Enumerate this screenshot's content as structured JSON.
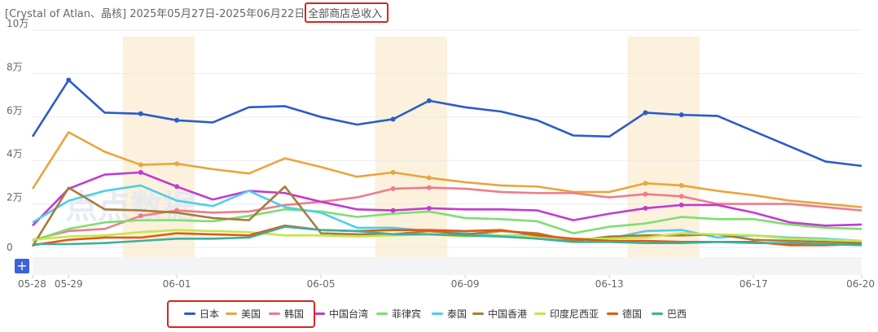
{
  "header": {
    "title_prefix": "[Crystal of Atlan、晶核] 2025年05月27日-2025年06月22日",
    "title_highlight": "全部商店总收入"
  },
  "controls": {
    "expand_label": "+"
  },
  "watermark": "点点数据",
  "chart_data": {
    "type": "line",
    "title": "全部商店总收入",
    "ylim": [
      0,
      100000
    ],
    "y_ticks": [
      {
        "value": 0,
        "label": "0"
      },
      {
        "value": 20000,
        "label": "2万"
      },
      {
        "value": 40000,
        "label": "4万"
      },
      {
        "value": 60000,
        "label": "6万"
      },
      {
        "value": 80000,
        "label": "8万"
      },
      {
        "value": 100000,
        "label": "10万"
      }
    ],
    "x": [
      "05-28",
      "05-29",
      "05-30",
      "05-31",
      "06-01",
      "06-02",
      "06-03",
      "06-04",
      "06-05",
      "06-06",
      "06-07",
      "06-08",
      "06-09",
      "06-10",
      "06-11",
      "06-12",
      "06-13",
      "06-14",
      "06-15",
      "06-16",
      "06-17",
      "06-18",
      "06-19",
      "06-20"
    ],
    "x_tick_labels": [
      "05-28",
      "05-29",
      "06-01",
      "06-05",
      "06-09",
      "06-13",
      "06-17",
      "06-20"
    ],
    "weekend_bands": [
      [
        "05-31",
        "06-01"
      ],
      [
        "06-07",
        "06-08"
      ],
      [
        "06-14",
        "06-15"
      ]
    ],
    "grid": true,
    "legend_position": "bottom",
    "series": [
      {
        "name": "日本",
        "color": "#2b5cc8",
        "values": [
          51000,
          77000,
          62000,
          61500,
          58500,
          57500,
          64500,
          65000,
          60000,
          56500,
          59000,
          67500,
          64500,
          62500,
          58500,
          51500,
          51000,
          62000,
          61000,
          60500,
          53500,
          46500,
          39500,
          37500
        ]
      },
      {
        "name": "美国",
        "color": "#e8a63c",
        "values": [
          27000,
          53000,
          44000,
          38000,
          38500,
          36000,
          34000,
          41000,
          37000,
          32500,
          34500,
          32000,
          30000,
          28500,
          28000,
          25500,
          25500,
          29500,
          28500,
          26000,
          24000,
          21500,
          20000,
          18500
        ]
      },
      {
        "name": "韩国",
        "color": "#ee7c8a",
        "values": [
          3500,
          7500,
          8500,
          14500,
          17000,
          16000,
          16500,
          19500,
          21000,
          23000,
          27000,
          27500,
          27000,
          25500,
          25000,
          25000,
          23000,
          24500,
          23500,
          20000,
          20000,
          20000,
          18500,
          17000
        ]
      },
      {
        "name": "中国台湾",
        "color": "#c23ad2",
        "values": [
          10000,
          27000,
          33500,
          34500,
          28000,
          22000,
          26000,
          25000,
          21000,
          17500,
          17000,
          18000,
          17500,
          17500,
          17000,
          12500,
          15500,
          18000,
          19500,
          19500,
          16000,
          11500,
          10000,
          10500
        ]
      },
      {
        "name": "菲律宾",
        "color": "#7ede6f",
        "values": [
          3000,
          8500,
          11500,
          12500,
          12500,
          12000,
          14500,
          17500,
          16500,
          14000,
          15500,
          16500,
          13500,
          13000,
          12000,
          6500,
          9500,
          11000,
          14000,
          13000,
          13000,
          10500,
          9000,
          8500
        ]
      },
      {
        "name": "泰国",
        "color": "#4dcfe8",
        "values": [
          11500,
          21500,
          26000,
          28500,
          21500,
          19000,
          26000,
          18500,
          16000,
          9000,
          9000,
          7500,
          6500,
          5500,
          5500,
          2500,
          4000,
          7500,
          8000,
          4500,
          5500,
          4500,
          4000,
          3000
        ]
      },
      {
        "name": "中国香港",
        "color": "#a87c3c",
        "values": [
          500,
          27500,
          17500,
          17000,
          16000,
          13500,
          12500,
          28000,
          6500,
          6000,
          6000,
          7500,
          6000,
          7500,
          6500,
          3000,
          5000,
          5500,
          5500,
          6000,
          3500,
          3000,
          2500,
          2000
        ]
      },
      {
        "name": "印度尼西亚",
        "color": "#c5e64a",
        "values": [
          3500,
          5000,
          5500,
          7000,
          8000,
          7500,
          7000,
          5500,
          5500,
          5000,
          5500,
          6000,
          5000,
          5500,
          5000,
          4000,
          4000,
          4500,
          6500,
          6000,
          5500,
          4000,
          3500,
          3000
        ]
      },
      {
        "name": "德国",
        "color": "#e05a12",
        "values": [
          1000,
          3500,
          4500,
          4500,
          6500,
          6000,
          5500,
          10000,
          8000,
          7500,
          8000,
          8000,
          7500,
          8000,
          5500,
          4000,
          3000,
          3000,
          2500,
          2500,
          2500,
          1000,
          1000,
          1500
        ]
      },
      {
        "name": "巴西",
        "color": "#3fae9c",
        "values": [
          1500,
          1500,
          2000,
          3000,
          4000,
          4000,
          4500,
          9500,
          8000,
          7500,
          6000,
          6000,
          5500,
          5000,
          4000,
          2500,
          2500,
          2000,
          2000,
          2500,
          2000,
          2000,
          1500,
          1000
        ]
      }
    ]
  }
}
